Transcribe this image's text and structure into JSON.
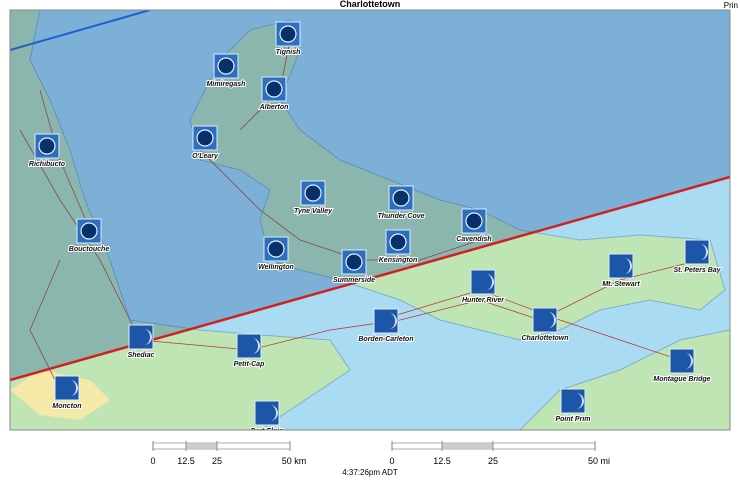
{
  "header": {
    "title": "Charlottetown",
    "corner": "Prin"
  },
  "places": [
    "Tignish",
    "Mimiregash",
    "Alberton",
    "O'Leary",
    "Richibucto",
    "Tyne Valley",
    "Thunder Cove",
    "Cavendish",
    "Bouctouche",
    "Wellington",
    "Kensington",
    "Summerside",
    "Hunter River",
    "Mt. Stewart",
    "St. Peters Bay",
    "Borden-Carleton",
    "Charlottetown",
    "Shediac",
    "Petit-Cap",
    "Montague Bridge",
    "Moncton",
    "Point Prim",
    "Port Elgin"
  ],
  "scale": {
    "km": [
      "0",
      "12.5",
      "25",
      "50 km"
    ],
    "mi": [
      "0",
      "12.5",
      "25",
      "50 mi"
    ]
  },
  "footer": {
    "time": "4:37:26pm ADT"
  }
}
